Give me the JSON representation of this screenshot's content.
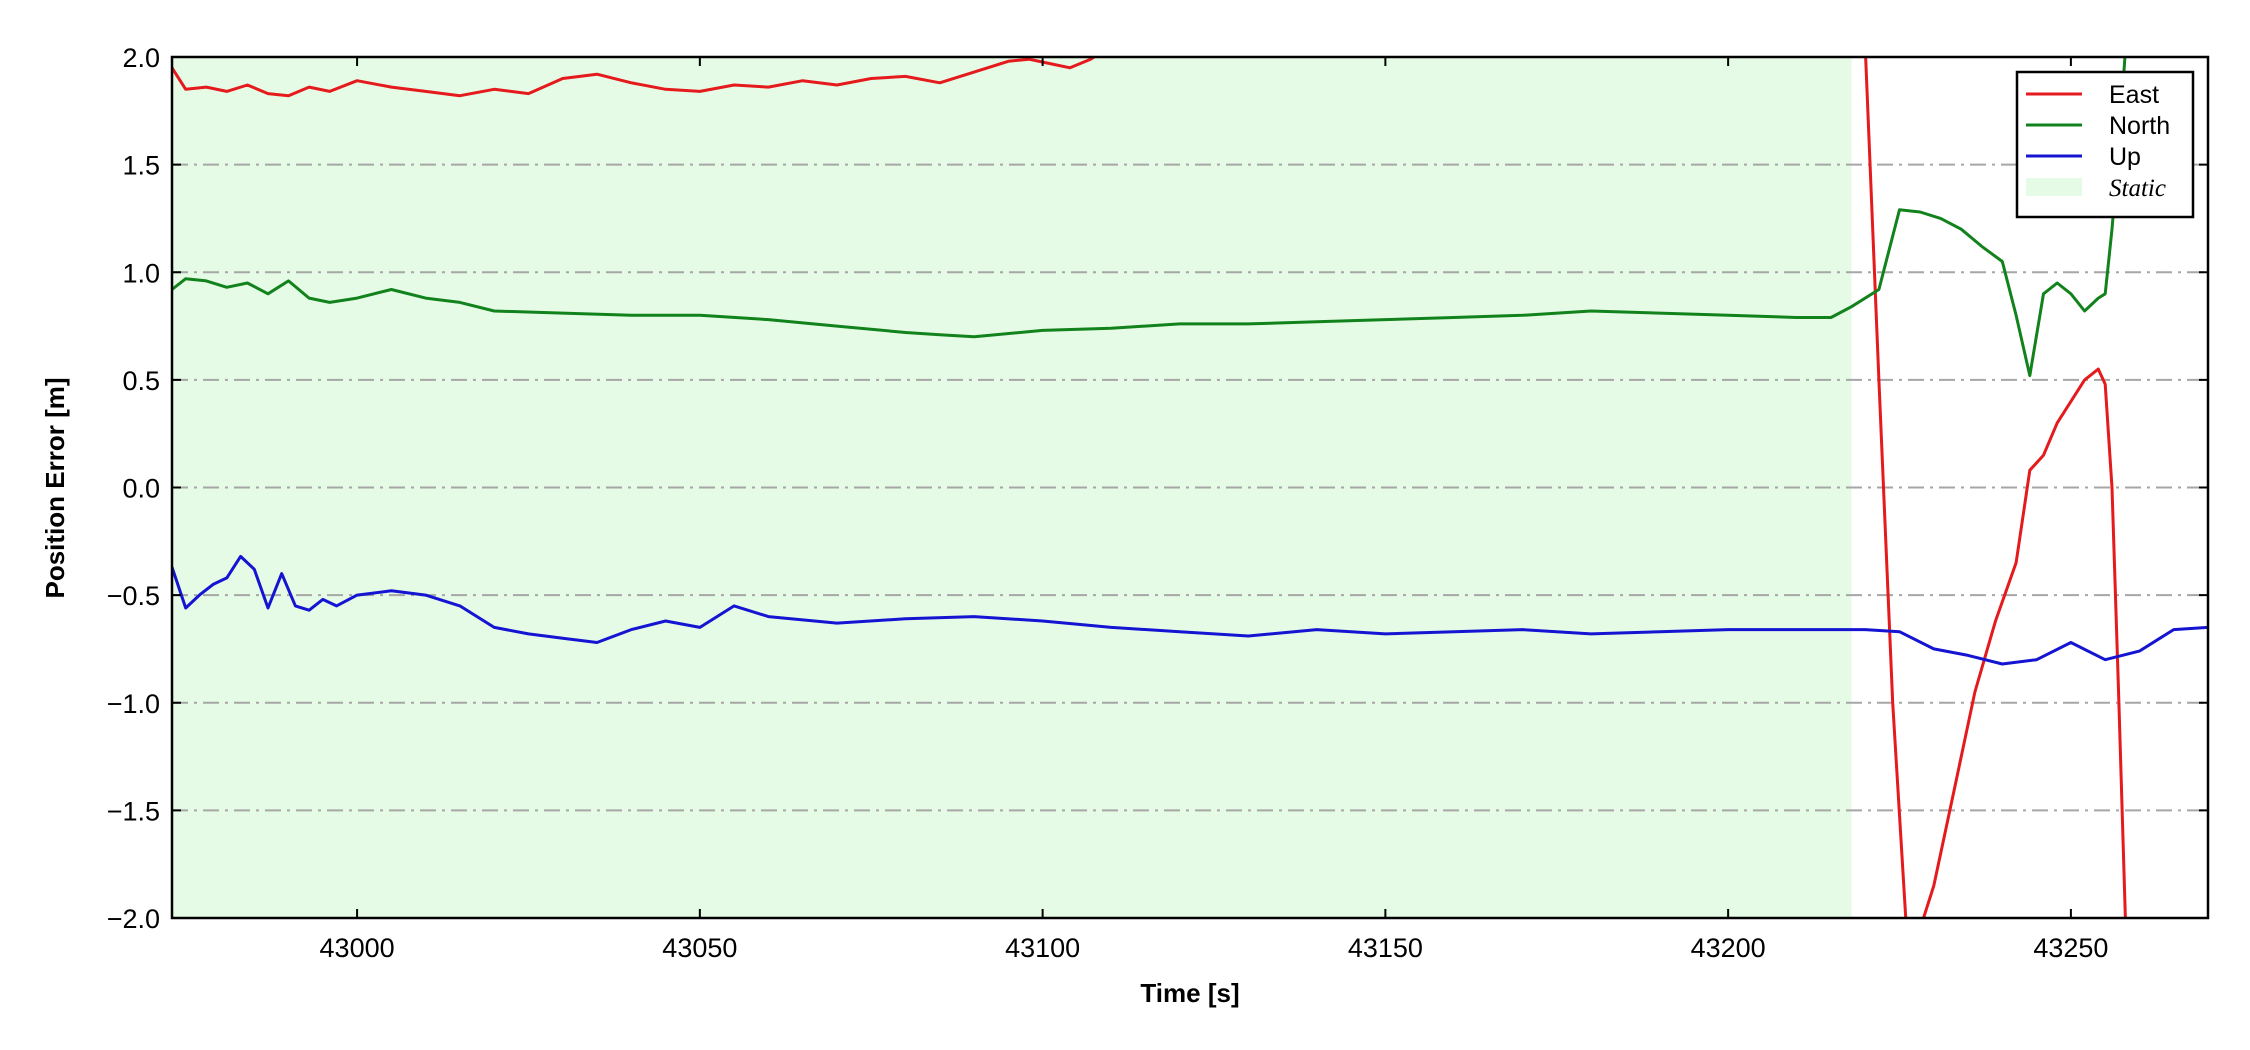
{
  "chart_data": {
    "type": "line",
    "title": "",
    "xlabel": "Time [s]",
    "ylabel": "Position Error [m]",
    "xlim": [
      42973,
      43270
    ],
    "ylim": [
      -2.0,
      2.0
    ],
    "xticks": [
      43000,
      43050,
      43100,
      43150,
      43200,
      43250
    ],
    "xtick_labels": [
      "43000",
      "43050",
      "43100",
      "43150",
      "43200",
      "43250"
    ],
    "yticks": [
      -2.0,
      -1.5,
      -1.0,
      -0.5,
      0.0,
      0.5,
      1.0,
      1.5,
      2.0
    ],
    "ytick_labels": [
      "−2.0",
      "−1.5",
      "−1.0",
      "−0.5",
      "0.0",
      "0.5",
      "1.0",
      "1.5",
      "2.0"
    ],
    "grid": "horizontal dash-dot",
    "legend_position": "top-right",
    "static_region": {
      "label": "Static",
      "x_start": 42973,
      "x_end": 43218,
      "color": "#e6fbe6"
    },
    "series": [
      {
        "name": "East",
        "color": "#e41a1c",
        "x": [
          42973,
          42975,
          42978,
          42981,
          42984,
          42987,
          42990,
          42993,
          42996,
          43000,
          43005,
          43010,
          43015,
          43020,
          43025,
          43030,
          43035,
          43040,
          43045,
          43050,
          43055,
          43060,
          43065,
          43070,
          43075,
          43080,
          43085,
          43090,
          43095,
          43098,
          43101,
          43104,
          43107,
          43110
        ],
        "y": [
          1.95,
          1.85,
          1.86,
          1.84,
          1.87,
          1.83,
          1.82,
          1.86,
          1.84,
          1.89,
          1.86,
          1.84,
          1.82,
          1.85,
          1.83,
          1.9,
          1.92,
          1.88,
          1.85,
          1.84,
          1.87,
          1.86,
          1.89,
          1.87,
          1.9,
          1.91,
          1.88,
          1.93,
          1.98,
          1.99,
          1.97,
          1.95,
          1.99,
          2.05
        ]
      },
      {
        "name": "East",
        "color": "#e41a1c",
        "x": [
          43220,
          43222,
          43224,
          43226,
          43228,
          43230,
          43233,
          43236,
          43239,
          43242,
          43244,
          43246,
          43248,
          43250,
          43252,
          43254,
          43255,
          43256,
          43257,
          43258
        ],
        "y": [
          2.05,
          0.5,
          -1.0,
          -2.05,
          -2.05,
          -1.85,
          -1.4,
          -0.95,
          -0.62,
          -0.35,
          0.08,
          0.15,
          0.3,
          0.4,
          0.5,
          0.55,
          0.48,
          0.0,
          -1.0,
          -2.05
        ]
      },
      {
        "name": "North",
        "color": "#12821c",
        "x": [
          42973,
          42975,
          42978,
          42981,
          42984,
          42987,
          42990,
          42993,
          42996,
          43000,
          43005,
          43010,
          43015,
          43020,
          43030,
          43040,
          43050,
          43060,
          43070,
          43080,
          43085,
          43090,
          43100,
          43110,
          43120,
          43130,
          43140,
          43150,
          43160,
          43170,
          43180,
          43190,
          43200,
          43210,
          43215,
          43218,
          43222,
          43225,
          43228,
          43231,
          43234,
          43237,
          43240,
          43242,
          43244,
          43246,
          43248,
          43250,
          43252,
          43254,
          43255,
          43256,
          43257,
          43258
        ],
        "y": [
          0.92,
          0.97,
          0.96,
          0.93,
          0.95,
          0.9,
          0.96,
          0.88,
          0.86,
          0.88,
          0.92,
          0.88,
          0.86,
          0.82,
          0.81,
          0.8,
          0.8,
          0.78,
          0.75,
          0.72,
          0.71,
          0.7,
          0.73,
          0.74,
          0.76,
          0.76,
          0.77,
          0.78,
          0.79,
          0.8,
          0.82,
          0.81,
          0.8,
          0.79,
          0.79,
          0.84,
          0.92,
          1.29,
          1.28,
          1.25,
          1.2,
          1.12,
          1.05,
          0.8,
          0.52,
          0.9,
          0.95,
          0.9,
          0.82,
          0.88,
          0.9,
          1.2,
          1.6,
          2.05
        ]
      },
      {
        "name": "Up",
        "color": "#1414d2",
        "x": [
          42973,
          42975,
          42977,
          42979,
          42981,
          42983,
          42985,
          42987,
          42989,
          42991,
          42993,
          42995,
          42997,
          43000,
          43005,
          43010,
          43015,
          43020,
          43025,
          43030,
          43035,
          43040,
          43045,
          43050,
          43055,
          43060,
          43070,
          43080,
          43090,
          43100,
          43110,
          43120,
          43130,
          43140,
          43150,
          43160,
          43170,
          43180,
          43190,
          43200,
          43210,
          43220,
          43225,
          43230,
          43235,
          43240,
          43245,
          43250,
          43255,
          43260,
          43265,
          43270
        ],
        "y": [
          -0.37,
          -0.56,
          -0.5,
          -0.45,
          -0.42,
          -0.32,
          -0.38,
          -0.56,
          -0.4,
          -0.55,
          -0.57,
          -0.52,
          -0.55,
          -0.5,
          -0.48,
          -0.5,
          -0.55,
          -0.65,
          -0.68,
          -0.7,
          -0.72,
          -0.66,
          -0.62,
          -0.65,
          -0.55,
          -0.6,
          -0.63,
          -0.61,
          -0.6,
          -0.62,
          -0.65,
          -0.67,
          -0.69,
          -0.66,
          -0.68,
          -0.67,
          -0.66,
          -0.68,
          -0.67,
          -0.66,
          -0.66,
          -0.66,
          -0.67,
          -0.75,
          -0.78,
          -0.82,
          -0.8,
          -0.72,
          -0.8,
          -0.76,
          -0.66,
          -0.65
        ]
      }
    ]
  },
  "legend": {
    "entries": [
      {
        "label": "East",
        "color": "#e41a1c",
        "kind": "line"
      },
      {
        "label": "North",
        "color": "#12821c",
        "kind": "line"
      },
      {
        "label": "Up",
        "color": "#1414d2",
        "kind": "line"
      },
      {
        "label": "Static",
        "color": "#e6fbe6",
        "kind": "patch"
      }
    ]
  }
}
